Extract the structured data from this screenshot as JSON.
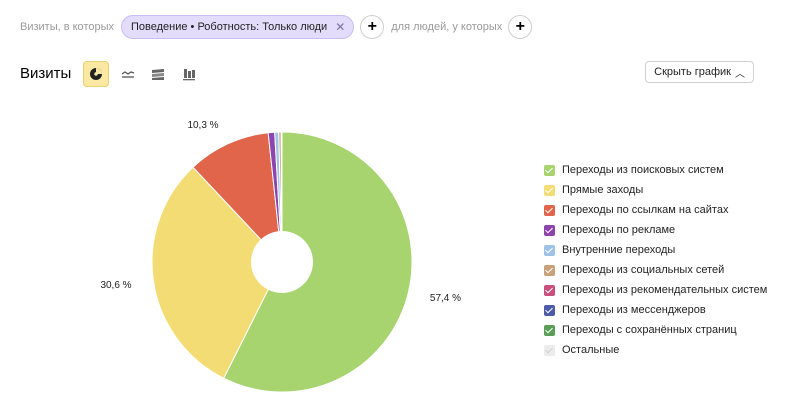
{
  "filters": {
    "prefix": "Визиты, в которых",
    "chip_label": "Поведение • Роботность: Только люди",
    "people_label": "для людей, у которых"
  },
  "header": {
    "title": "Визиты",
    "hide_chart_label": "Скрыть график"
  },
  "view_icons": [
    "pie-chart-icon",
    "line-chart-icon",
    "area-chart-icon",
    "bar-chart-icon"
  ],
  "chart_data": {
    "type": "pie",
    "donut": true,
    "legend_position": "right",
    "slices": [
      {
        "name": "Переходы из поисковых систем",
        "value": 57.4,
        "label": "57,4 %",
        "color": "#a8d46f"
      },
      {
        "name": "Прямые заходы",
        "value": 30.6,
        "label": "30,6 %",
        "color": "#f4dc75"
      },
      {
        "name": "Переходы по ссылкам на сайтах",
        "value": 10.3,
        "label": "10,3 %",
        "color": "#e0654b"
      },
      {
        "name": "Переходы по рекламе",
        "value": 0.8,
        "label": "",
        "color": "#8e44ad"
      },
      {
        "name": "Внутренние переходы",
        "value": 0.5,
        "label": "",
        "color": "#9fc3e7"
      },
      {
        "name": "Переходы из социальных сетей",
        "value": 0.3,
        "label": "",
        "color": "#c8a07a"
      },
      {
        "name": "Переходы из рекомендательных систем",
        "value": 0.05,
        "label": "",
        "color": "#c94f7c"
      },
      {
        "name": "Переходы из мессенджеров",
        "value": 0.03,
        "label": "",
        "color": "#4c5aa8"
      },
      {
        "name": "Переходы с сохранённых страниц",
        "value": 0.01,
        "label": "",
        "color": "#5b9e57"
      },
      {
        "name": "Остальные",
        "value": 0.01,
        "label": "",
        "color": "#ececec"
      }
    ]
  }
}
